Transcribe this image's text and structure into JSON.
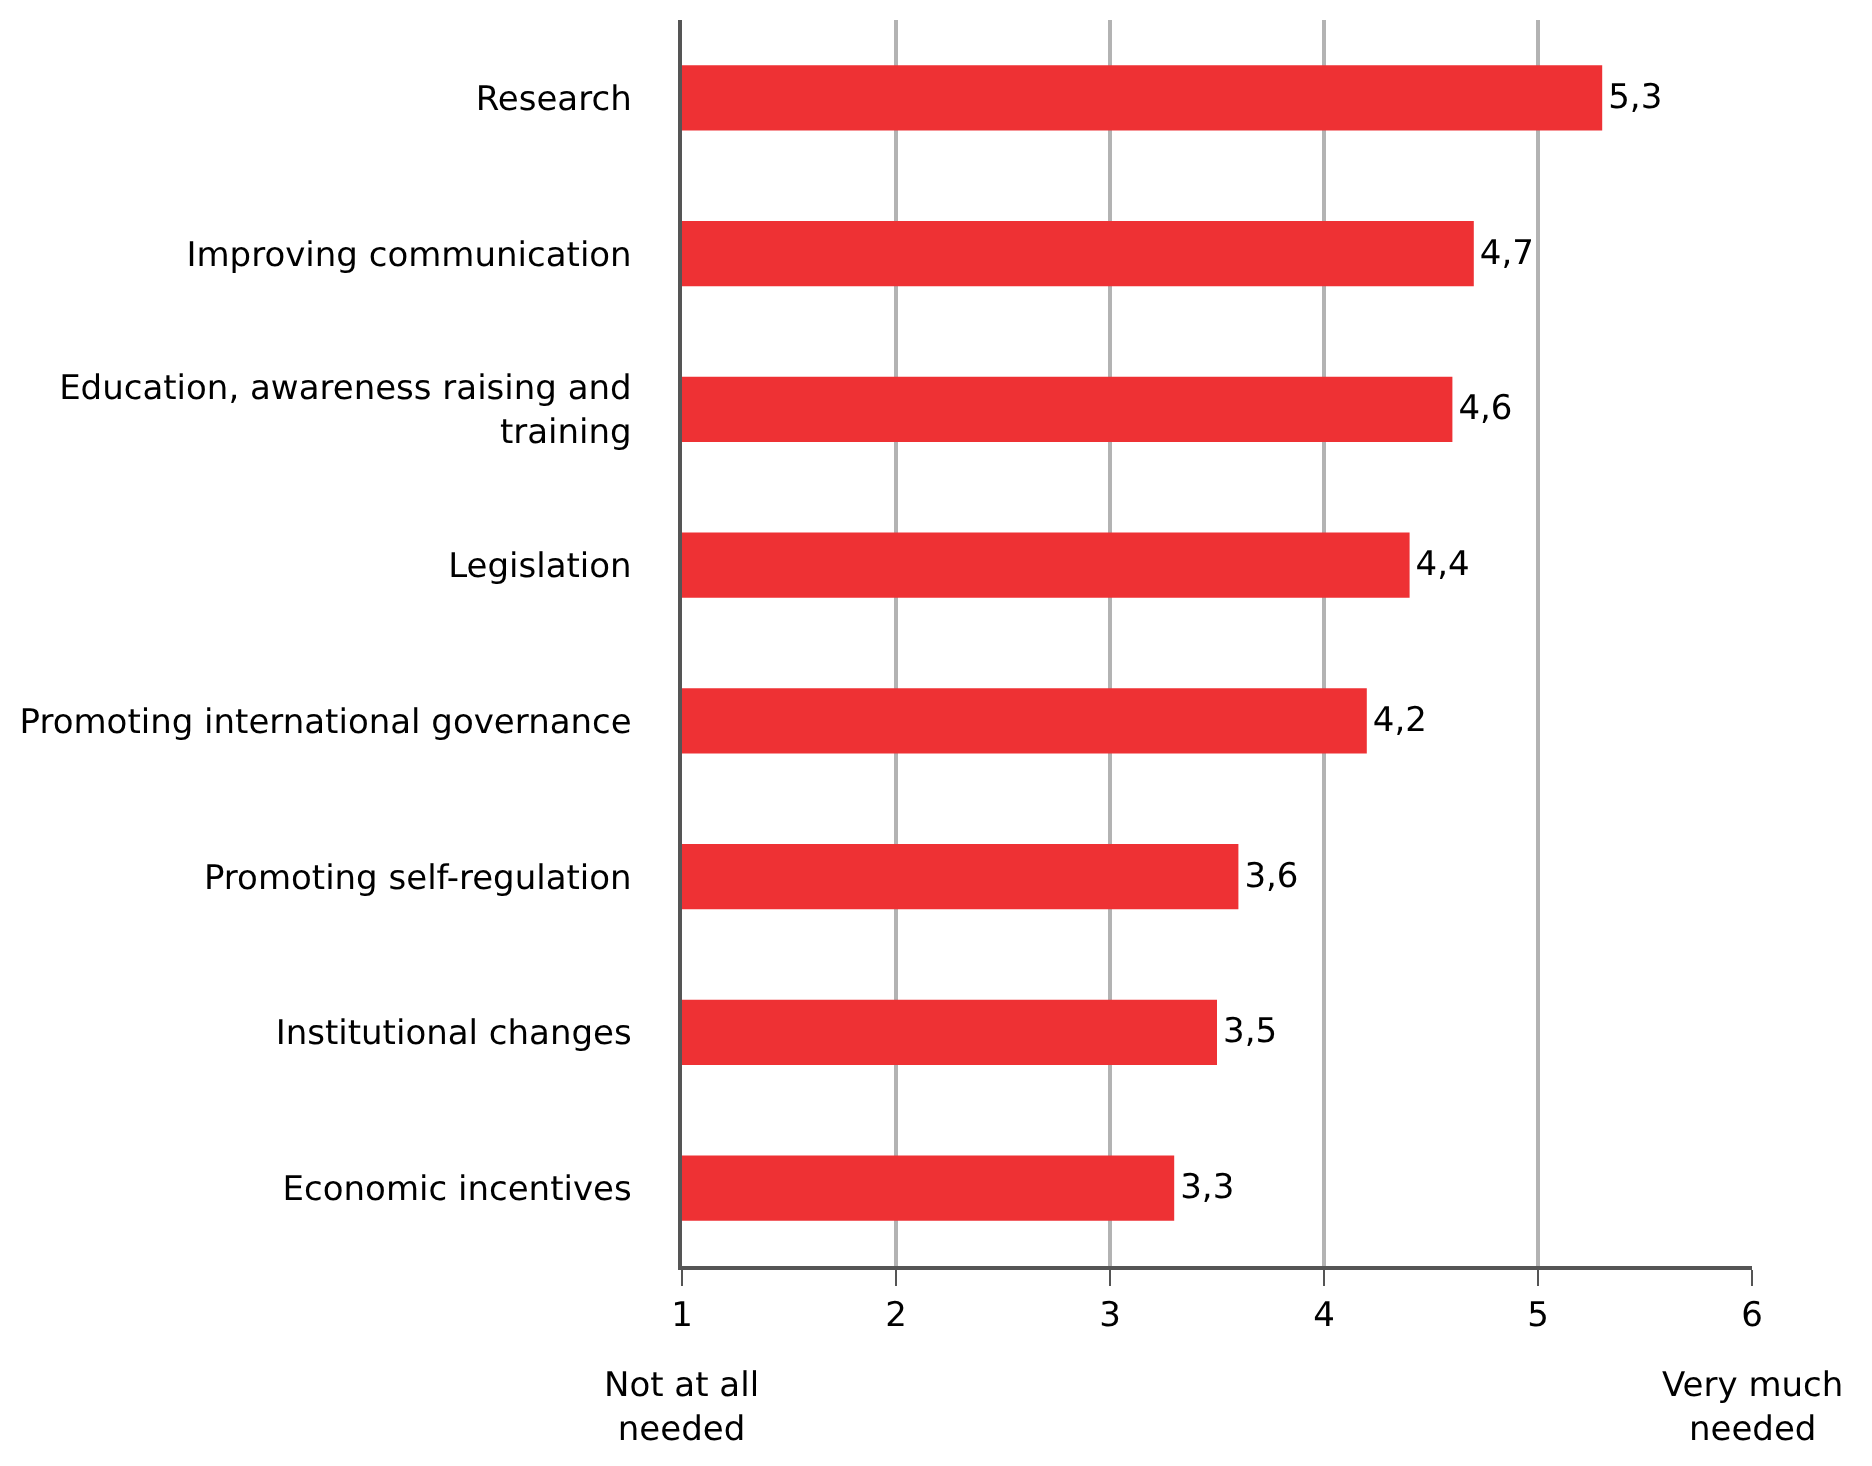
{
  "chart_data": {
    "type": "bar",
    "orientation": "horizontal",
    "categories": [
      "Research",
      "Improving communication",
      "Education, awareness raising and\ntraining",
      "Legislation",
      "Promoting international governance",
      "Promoting self-regulation",
      "Institutional changes",
      "Economic incentives"
    ],
    "values": [
      5.3,
      4.7,
      4.6,
      4.4,
      4.2,
      3.6,
      3.5,
      3.3
    ],
    "value_labels": [
      "5,3",
      "4,7",
      "4,6",
      "4,4",
      "4,2",
      "3,6",
      "3,5",
      "3,3"
    ],
    "color": "#ee3134",
    "xlim": [
      1,
      6
    ],
    "xticks": [
      1,
      2,
      3,
      4,
      5,
      6
    ],
    "annotations": [
      "Not at all\nneeded",
      "Very much\nneeded"
    ],
    "grid": "x"
  }
}
